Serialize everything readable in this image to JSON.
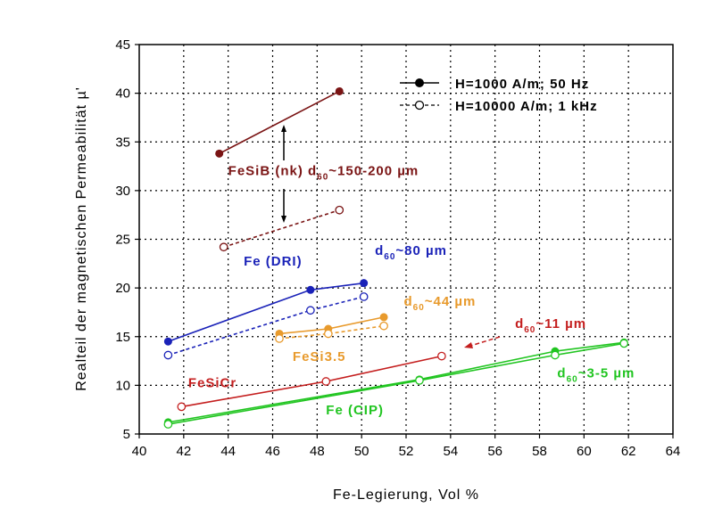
{
  "chart_data": {
    "type": "line",
    "title": "",
    "xlabel": "Fe-Legierung, Vol %",
    "ylabel": "Realteil der magnetischen Permeabilität µ'",
    "xlim": [
      40,
      64
    ],
    "ylim": [
      5,
      45
    ],
    "xticks": [
      40,
      42,
      44,
      46,
      48,
      50,
      52,
      54,
      56,
      58,
      60,
      62,
      64
    ],
    "yticks": [
      5,
      10,
      15,
      20,
      25,
      30,
      35,
      40,
      45
    ],
    "grid": true,
    "legend_position": "top-right",
    "legend": [
      {
        "label": "H=1000 A/m; 50 Hz",
        "marker": "filled",
        "line": "solid"
      },
      {
        "label": "H=10000 A/m; 1 kHz",
        "marker": "open",
        "line": "dashed"
      }
    ],
    "series": [
      {
        "material": "FeSiB (nk)",
        "condition": "H=1000 A/m; 50 Hz",
        "color": "#7a1414",
        "marker": "filled",
        "line": "solid",
        "points": [
          [
            43.6,
            33.8
          ],
          [
            49.0,
            40.2
          ]
        ]
      },
      {
        "material": "FeSiB (nk)",
        "condition": "H=10000 A/m; 1 kHz",
        "color": "#7a1414",
        "marker": "open",
        "line": "dashed",
        "points": [
          [
            43.8,
            24.2
          ],
          [
            49.0,
            28.0
          ]
        ]
      },
      {
        "material": "Fe (DRI)",
        "condition": "H=1000 A/m; 50 Hz",
        "color": "#1a22b8",
        "marker": "filled",
        "line": "solid",
        "points": [
          [
            41.3,
            14.5
          ],
          [
            47.7,
            19.8
          ],
          [
            50.1,
            20.5
          ]
        ]
      },
      {
        "material": "Fe (DRI)",
        "condition": "H=10000 A/m; 1 kHz",
        "color": "#1a22b8",
        "marker": "open",
        "line": "dashed",
        "points": [
          [
            41.3,
            13.1
          ],
          [
            47.7,
            17.7
          ],
          [
            50.1,
            19.1
          ]
        ]
      },
      {
        "material": "FeSi3.5",
        "condition": "H=1000 A/m; 50 Hz",
        "color": "#e89a2c",
        "marker": "filled",
        "line": "solid",
        "points": [
          [
            46.3,
            15.3
          ],
          [
            48.5,
            15.8
          ],
          [
            51.0,
            17.0
          ]
        ]
      },
      {
        "material": "FeSi3.5",
        "condition": "H=10000 A/m; 1 kHz",
        "color": "#e89a2c",
        "marker": "open",
        "line": "dashed",
        "points": [
          [
            46.3,
            14.8
          ],
          [
            48.5,
            15.3
          ],
          [
            51.0,
            16.1
          ]
        ]
      },
      {
        "material": "FeSiCr",
        "condition": "H=1000 A/m; 50 Hz",
        "color": "#c41e1e",
        "marker": "open",
        "line": "solid",
        "points": [
          [
            41.9,
            7.8
          ],
          [
            48.4,
            10.4
          ],
          [
            53.6,
            13.0
          ]
        ]
      },
      {
        "material": "Fe (CIP)",
        "condition": "H=1000 A/m; 50 Hz",
        "color": "#21c521",
        "marker": "filled",
        "line": "solid",
        "points": [
          [
            41.3,
            6.2
          ],
          [
            52.6,
            10.6
          ],
          [
            58.7,
            13.5
          ],
          [
            61.8,
            14.4
          ]
        ]
      },
      {
        "material": "Fe (CIP)",
        "condition": "H=10000 A/m; 1 kHz",
        "color": "#21c521",
        "marker": "open",
        "line": "solid",
        "points": [
          [
            41.3,
            6.0
          ],
          [
            52.6,
            10.5
          ],
          [
            58.7,
            13.1
          ],
          [
            61.8,
            14.3
          ]
        ]
      }
    ],
    "annotations": [
      {
        "text": "FeSiB (nk) d",
        "sub": "60",
        "tail": "~150-200 µm",
        "color": "#7a1414",
        "x": 44.0,
        "y": 31.6
      },
      {
        "text": "Fe (DRI)",
        "sub": "",
        "tail": "",
        "color": "#1a22b8",
        "x": 44.7,
        "y": 22.3
      },
      {
        "text": "d",
        "sub": "60",
        "tail": "~80 µm",
        "color": "#1a22b8",
        "x": 50.6,
        "y": 23.4
      },
      {
        "text": "d",
        "sub": "60",
        "tail": "~44 µm",
        "color": "#e89a2c",
        "x": 51.9,
        "y": 18.2
      },
      {
        "text": "FeSi3.5",
        "sub": "",
        "tail": "",
        "color": "#e89a2c",
        "x": 46.9,
        "y": 12.5
      },
      {
        "text": "d",
        "sub": "60",
        "tail": "~11 µm",
        "color": "#c41e1e",
        "x": 56.9,
        "y": 15.9
      },
      {
        "text": "FeSiCr",
        "sub": "",
        "tail": "",
        "color": "#c41e1e",
        "x": 42.2,
        "y": 9.8
      },
      {
        "text": "d",
        "sub": "60",
        "tail": "~3-5 µm",
        "color": "#21c521",
        "x": 58.8,
        "y": 10.8
      },
      {
        "text": "Fe (CIP)",
        "sub": "",
        "tail": "",
        "color": "#21c521",
        "x": 48.4,
        "y": 7.0
      }
    ]
  }
}
